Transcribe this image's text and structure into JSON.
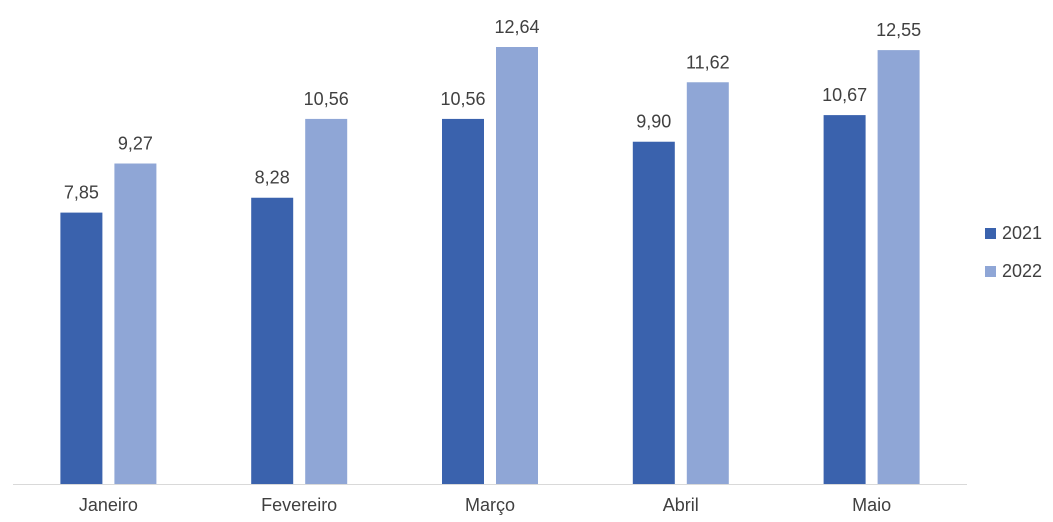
{
  "chart_data": {
    "type": "bar",
    "title": "",
    "xlabel": "",
    "ylabel": "",
    "categories": [
      "Janeiro",
      "Fevereiro",
      "Março",
      "Abril",
      "Maio"
    ],
    "series": [
      {
        "name": "2021",
        "values": [
          7.85,
          8.28,
          10.56,
          9.9,
          10.67
        ],
        "labels": [
          "7,85",
          "8,28",
          "10,56",
          "9,90",
          "10,67"
        ],
        "color": "#3A62AD"
      },
      {
        "name": "2022",
        "values": [
          9.27,
          10.56,
          12.64,
          11.62,
          12.55
        ],
        "labels": [
          "9,27",
          "10,56",
          "12,64",
          "11,62",
          "12,55"
        ],
        "color": "#8FA6D6"
      }
    ],
    "ylim": [
      0,
      12.64
    ],
    "grid": false,
    "legend_position": "right",
    "data_labels": true,
    "axis_line_color": "#D9D9D9",
    "text_color": "#404040"
  }
}
